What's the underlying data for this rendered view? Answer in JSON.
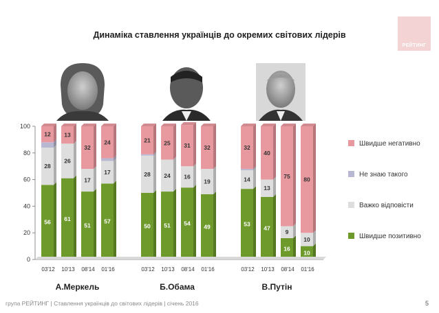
{
  "page": {
    "title": "Динаміка ставлення українців до окремих світових лідерів",
    "footer": "група РЕЙТИНГ | Ставлення українців до світових лідерів | січень 2016",
    "page_number": "5",
    "logo_text": "РЕЙТИНГ"
  },
  "colors": {
    "negative": "#e8999f",
    "dont_know": "#b8b8d2",
    "hard_to_say": "#dedede",
    "positive": "#6e9a2c"
  },
  "chart_data": {
    "type": "bar",
    "stacked": true,
    "ylim": [
      0,
      100
    ],
    "yticks": [
      0,
      20,
      40,
      60,
      80,
      100
    ],
    "grid": false,
    "legend_position": "right",
    "groups": [
      {
        "name": "А.Меркель",
        "categories": [
          "03'12",
          "10'13",
          "08'14",
          "01'16"
        ],
        "positive": [
          56,
          61,
          51,
          57
        ],
        "hard_to_say": [
          28,
          26,
          17,
          17
        ],
        "dont_know": [
          4,
          0,
          0,
          2
        ],
        "negative": [
          12,
          13,
          32,
          24
        ],
        "labels": {
          "positive": [
            "56",
            "61",
            "51",
            "57"
          ],
          "hard_to_say": [
            "28",
            "26",
            "17",
            "17"
          ],
          "negative": [
            "12",
            "13",
            "32",
            "24"
          ]
        }
      },
      {
        "name": "Б.Обама",
        "categories": [
          "03'12",
          "10'13",
          "08'14",
          "01'16"
        ],
        "positive": [
          50,
          51,
          54,
          49
        ],
        "hard_to_say": [
          28,
          24,
          16,
          19
        ],
        "dont_know": [
          1,
          0,
          0,
          0
        ],
        "negative": [
          21,
          25,
          31,
          32
        ],
        "labels": {
          "positive": [
            "50",
            "51",
            "54",
            "49"
          ],
          "hard_to_say": [
            "28",
            "24",
            "16",
            "19"
          ],
          "negative": [
            "21",
            "25",
            "31",
            "32"
          ]
        }
      },
      {
        "name": "В.Путін",
        "categories": [
          "03'12",
          "10'13",
          "08'14",
          "01'16"
        ],
        "positive": [
          53,
          47,
          16,
          10
        ],
        "hard_to_say": [
          14,
          13,
          9,
          10
        ],
        "dont_know": [
          1,
          0,
          0,
          0
        ],
        "negative": [
          32,
          40,
          75,
          80
        ],
        "labels": {
          "positive": [
            "53",
            "47",
            "16",
            "10"
          ],
          "hard_to_say": [
            "14",
            "13",
            "9",
            "10"
          ],
          "negative": [
            "32",
            "40",
            "75",
            "80"
          ]
        }
      }
    ],
    "series": [
      {
        "key": "negative",
        "name": "Швидше негативно"
      },
      {
        "key": "dont_know",
        "name": "Не знаю такого"
      },
      {
        "key": "hard_to_say",
        "name": "Важко відповісти"
      },
      {
        "key": "positive",
        "name": "Швидше позитивно"
      }
    ]
  }
}
